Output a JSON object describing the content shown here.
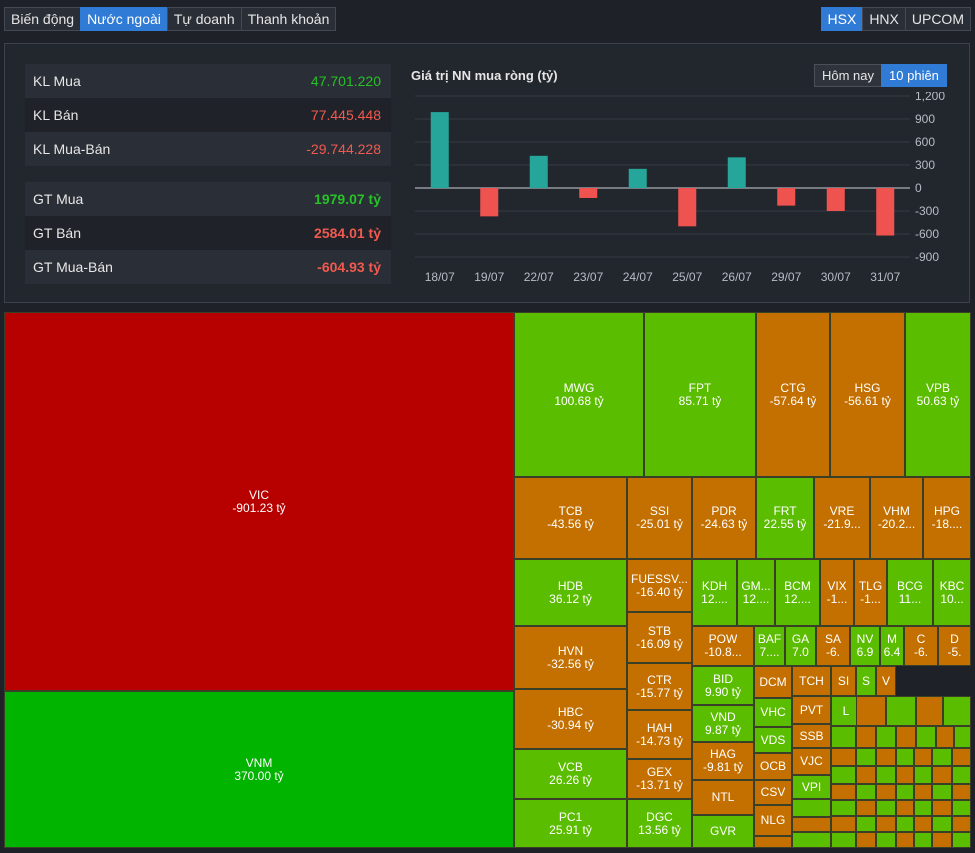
{
  "tabs": [
    "Biến động",
    "Nước ngoài",
    "Tự doanh",
    "Thanh khoản"
  ],
  "active_tab": 1,
  "exchanges": [
    "HSX",
    "HNX",
    "UPCOM"
  ],
  "active_exchange": 0,
  "stats": [
    {
      "label": "KL Mua",
      "value": "47.701.220",
      "tone": "green"
    },
    {
      "label": "KL Bán",
      "value": "77.445.448",
      "tone": "red"
    },
    {
      "label": "KL Mua-Bán",
      "value": "-29.744.228",
      "tone": "red"
    },
    {
      "label": "GT Mua",
      "value": "1979.07 tỷ",
      "tone": "green"
    },
    {
      "label": "GT Bán",
      "value": "2584.01 tỷ",
      "tone": "red"
    },
    {
      "label": "GT Mua-Bán",
      "value": "-604.93 tỷ",
      "tone": "red"
    }
  ],
  "chart_title": "Giá trị NN mua ròng (tỷ)",
  "chart_tabs": [
    "Hôm nay",
    "10 phiên"
  ],
  "chart_data": {
    "type": "bar",
    "categories": [
      "18/07",
      "19/07",
      "22/07",
      "23/07",
      "24/07",
      "25/07",
      "26/07",
      "29/07",
      "30/07",
      "31/07"
    ],
    "values": [
      990,
      -370,
      420,
      -130,
      250,
      -500,
      400,
      -230,
      -300,
      -620
    ],
    "yticks": [
      "1,200",
      "900",
      "600",
      "300",
      "0",
      "-300",
      "-600",
      "-900"
    ],
    "ylim": [
      -900,
      1200
    ],
    "pos_color": "#26a69a",
    "neg_color": "#ef5350"
  },
  "treemap_colors": {
    "red": "#b70000",
    "green": "#00b400",
    "lime": "#5bbd00",
    "orange": "#c47000"
  },
  "treemap": [
    {
      "t": "VIC",
      "v": "-901.23 tỷ",
      "c": "red"
    },
    {
      "t": "VNM",
      "v": "370.00 tỷ",
      "c": "green"
    },
    {
      "t": "MWG",
      "v": "100.68 tỷ",
      "c": "lime"
    },
    {
      "t": "FPT",
      "v": "85.71 tỷ",
      "c": "lime"
    },
    {
      "t": "CTG",
      "v": "-57.64 tỷ",
      "c": "orange"
    },
    {
      "t": "HSG",
      "v": "-56.61 tỷ",
      "c": "orange"
    },
    {
      "t": "VPB",
      "v": "50.63 tỷ",
      "c": "lime"
    },
    {
      "t": "TCB",
      "v": "-43.56 tỷ",
      "c": "orange"
    },
    {
      "t": "SSI",
      "v": "-25.01 tỷ",
      "c": "orange"
    },
    {
      "t": "PDR",
      "v": "-24.63 tỷ",
      "c": "orange"
    },
    {
      "t": "FRT",
      "v": "22.55 tỷ",
      "c": "lime"
    },
    {
      "t": "VRE",
      "v": "-21.9...",
      "c": "orange"
    },
    {
      "t": "VHM",
      "v": "-20.2...",
      "c": "orange"
    },
    {
      "t": "HPG",
      "v": "-18....",
      "c": "orange"
    },
    {
      "t": "HDB",
      "v": "36.12 tỷ",
      "c": "lime"
    },
    {
      "t": "FUESSV...",
      "v": "-16.40 tỷ",
      "c": "orange"
    },
    {
      "t": "KDH",
      "v": "12....",
      "c": "lime"
    },
    {
      "t": "GM...",
      "v": "12....",
      "c": "lime"
    },
    {
      "t": "BCM",
      "v": "12....",
      "c": "lime"
    },
    {
      "t": "VIX",
      "v": "-1...",
      "c": "orange"
    },
    {
      "t": "TLG",
      "v": "-1...",
      "c": "orange"
    },
    {
      "t": "BCG",
      "v": "11...",
      "c": "lime"
    },
    {
      "t": "KBC",
      "v": "10...",
      "c": "lime"
    },
    {
      "t": "HVN",
      "v": "-32.56 tỷ",
      "c": "orange"
    },
    {
      "t": "STB",
      "v": "-16.09 tỷ",
      "c": "orange"
    },
    {
      "t": "POW",
      "v": "-10.8...",
      "c": "orange"
    },
    {
      "t": "BAF",
      "v": "7....",
      "c": "lime"
    },
    {
      "t": "GA",
      "v": "7.0",
      "c": "lime"
    },
    {
      "t": "SA",
      "v": "-6.",
      "c": "orange"
    },
    {
      "t": "NV",
      "v": "6.9",
      "c": "lime"
    },
    {
      "t": "M",
      "v": "6.4",
      "c": "lime"
    },
    {
      "t": "C",
      "v": "-6.",
      "c": "orange"
    },
    {
      "t": "D",
      "v": "-5.",
      "c": "orange"
    },
    {
      "t": "CTR",
      "v": "-15.77 tỷ",
      "c": "orange"
    },
    {
      "t": "BID",
      "v": "9.90 tỷ",
      "c": "lime"
    },
    {
      "t": "DCM",
      "v": "",
      "c": "orange"
    },
    {
      "t": "TCH",
      "v": "",
      "c": "orange"
    },
    {
      "t": "SI",
      "v": "",
      "c": "orange"
    },
    {
      "t": "S",
      "v": "",
      "c": "lime"
    },
    {
      "t": "V",
      "v": "",
      "c": "orange"
    },
    {
      "t": "HBC",
      "v": "-30.94 tỷ",
      "c": "orange"
    },
    {
      "t": "HAH",
      "v": "-14.73 tỷ",
      "c": "orange"
    },
    {
      "t": "VND",
      "v": "9.87 tỷ",
      "c": "lime"
    },
    {
      "t": "VHC",
      "v": "",
      "c": "lime"
    },
    {
      "t": "PVT",
      "v": "",
      "c": "orange"
    },
    {
      "t": "L",
      "v": "",
      "c": "lime"
    },
    {
      "t": "VDS",
      "v": "",
      "c": "lime"
    },
    {
      "t": "SSB",
      "v": "",
      "c": "orange"
    },
    {
      "t": "HAG",
      "v": "-9.81 tỷ",
      "c": "orange"
    },
    {
      "t": "VCB",
      "v": "26.26 tỷ",
      "c": "lime"
    },
    {
      "t": "GEX",
      "v": "-13.71 tỷ",
      "c": "orange"
    },
    {
      "t": "OCB",
      "v": "",
      "c": "orange"
    },
    {
      "t": "VJC",
      "v": "",
      "c": "orange"
    },
    {
      "t": "NTL",
      "v": "",
      "c": "orange"
    },
    {
      "t": "CSV",
      "v": "",
      "c": "orange"
    },
    {
      "t": "VPI",
      "v": "",
      "c": "lime"
    },
    {
      "t": "PC1",
      "v": "25.91 tỷ",
      "c": "lime"
    },
    {
      "t": "DGC",
      "v": "13.56 tỷ",
      "c": "lime"
    },
    {
      "t": "GVR",
      "v": "",
      "c": "lime"
    },
    {
      "t": "NLG",
      "v": "",
      "c": "orange"
    }
  ]
}
